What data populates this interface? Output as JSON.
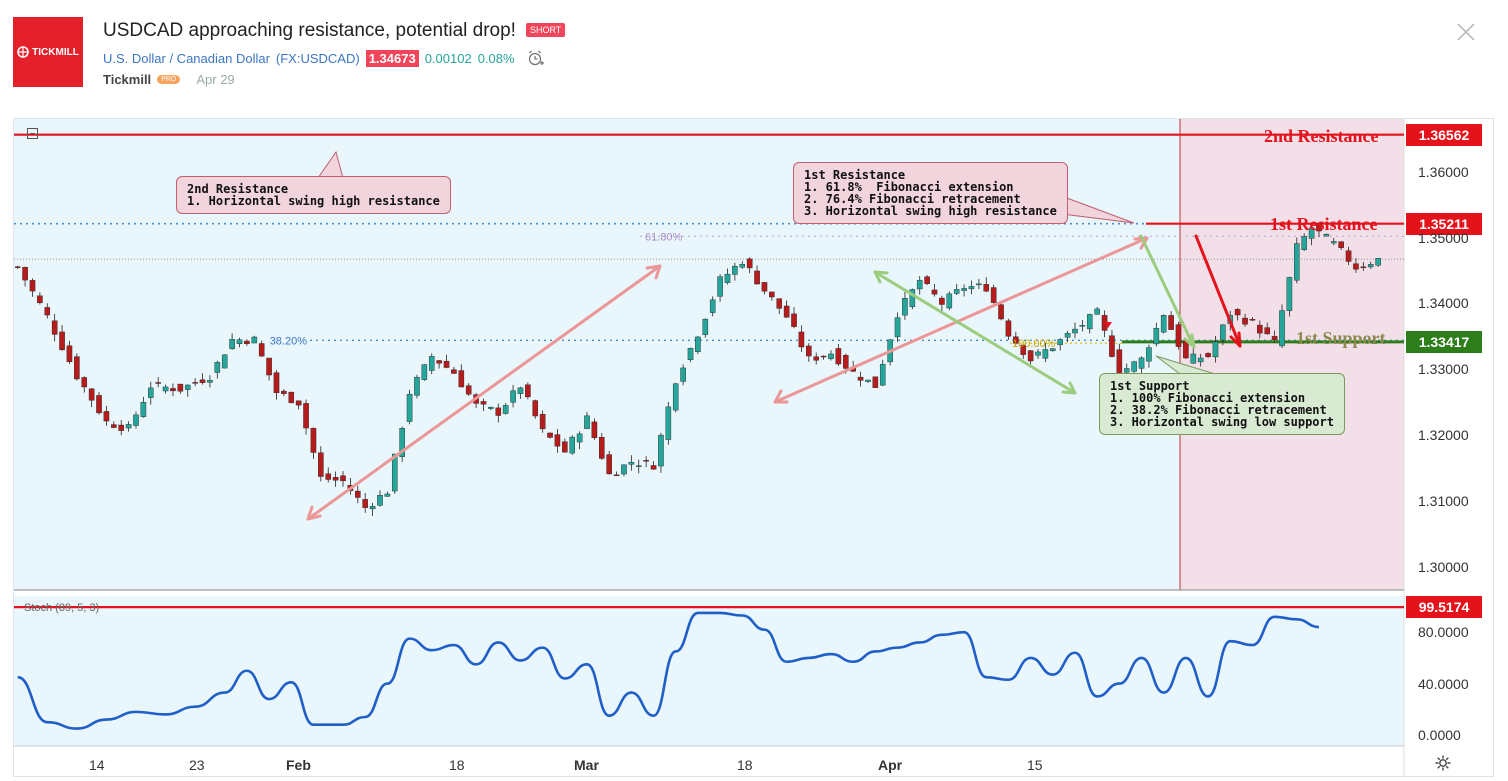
{
  "header": {
    "logo_text": "TICKMILL",
    "title": "USDCAD approaching resistance, potential drop!",
    "badge": "SHORT",
    "instrument": "U.S. Dollar / Canadian Dollar",
    "symbol": "(FX:USDCAD)",
    "price": "1.34673",
    "change": "0.00102",
    "change_pct": "0.08%",
    "author": "Tickmill",
    "author_badge": "PRO",
    "date": "Apr 29"
  },
  "price_tags": {
    "r2": "1.36562",
    "r1": "1.35211",
    "s1": "1.33417",
    "stoch": "99.5174"
  },
  "labels": {
    "r2": "2nd Resistance",
    "r1": "1st Resistance",
    "s1": "1st Support",
    "fib_618": "61.80%",
    "fib_382": "38.20%",
    "fib_100": "100.00%",
    "stoch_title": "Stoch (89, 5, 3)"
  },
  "notes": {
    "r2": "2nd Resistance\n1. Horizontal swing high resistance",
    "r1": "1st Resistance\n1. 61.8%  Fibonacci extension\n2. 76.4% Fibonacci retracement\n3. Horizontal swing high resistance",
    "s1": "1st Support\n1. 100% Fibonacci extension\n2. 38.2% Fibonacci retracement\n3. Horizontal swing low support"
  },
  "colors": {
    "bg": "#e9f6fc",
    "zone": "#f2dde7",
    "resistance": "#e4121b",
    "support": "#2e7d1b",
    "up": "#26a69a",
    "down": "#b71c1c",
    "pink_arrow": "#ec9797",
    "green_arrow": "#9ccc7e",
    "stoch_line": "#1f5fc7"
  },
  "chart_data": {
    "type": "candlestick",
    "symbol": "FX:USDCAD",
    "y_ticks": [
      "1.36000",
      "1.35000",
      "1.34000",
      "1.33000",
      "1.32000",
      "1.31000",
      "1.30000"
    ],
    "stoch_ticks": [
      "80.0000",
      "40.0000",
      "0.0000"
    ],
    "x_ticks": [
      "14",
      "23",
      "Feb",
      "18",
      "Mar",
      "18",
      "Apr",
      "15"
    ],
    "ylim": [
      1.2965,
      1.368
    ],
    "levels": {
      "resistance_2": 1.36562,
      "resistance_1": 1.35211,
      "support_1": 1.33417,
      "fib_618": 1.3502,
      "fib_382": 1.3344,
      "current": 1.34673,
      "stoch_resistance": 99.5174
    },
    "price_path": [
      [
        0,
        1.3455
      ],
      [
        4,
        1.338
      ],
      [
        8,
        1.329
      ],
      [
        12,
        1.322
      ],
      [
        15,
        1.321
      ],
      [
        18,
        1.3275
      ],
      [
        22,
        1.327
      ],
      [
        26,
        1.329
      ],
      [
        29,
        1.3345
      ],
      [
        32,
        1.3345
      ],
      [
        35,
        1.3265
      ],
      [
        38,
        1.325
      ],
      [
        41,
        1.3135
      ],
      [
        44,
        1.313
      ],
      [
        47,
        1.309
      ],
      [
        50,
        1.3115
      ],
      [
        53,
        1.3265
      ],
      [
        56,
        1.332
      ],
      [
        59,
        1.3295
      ],
      [
        62,
        1.3245
      ],
      [
        65,
        1.3235
      ],
      [
        68,
        1.3275
      ],
      [
        71,
        1.3205
      ],
      [
        74,
        1.3175
      ],
      [
        77,
        1.3225
      ],
      [
        80,
        1.314
      ],
      [
        83,
        1.316
      ],
      [
        86,
        1.3155
      ],
      [
        89,
        1.3285
      ],
      [
        92,
        1.3355
      ],
      [
        95,
        1.3435
      ],
      [
        98,
        1.3465
      ],
      [
        101,
        1.342
      ],
      [
        104,
        1.338
      ],
      [
        107,
        1.3315
      ],
      [
        110,
        1.3325
      ],
      [
        113,
        1.3295
      ],
      [
        116,
        1.3275
      ],
      [
        119,
        1.3385
      ],
      [
        122,
        1.3435
      ],
      [
        125,
        1.34
      ],
      [
        128,
        1.3425
      ],
      [
        131,
        1.3425
      ],
      [
        134,
        1.3355
      ],
      [
        137,
        1.3315
      ],
      [
        140,
        1.3335
      ],
      [
        143,
        1.336
      ],
      [
        146,
        1.3385
      ],
      [
        149,
        1.3295
      ],
      [
        152,
        1.3315
      ],
      [
        155,
        1.3385
      ],
      [
        158,
        1.3315
      ],
      [
        161,
        1.332
      ],
      [
        164,
        1.3385
      ],
      [
        167,
        1.337
      ],
      [
        170,
        1.334
      ],
      [
        173,
        1.3485
      ],
      [
        175,
        1.3515
      ],
      [
        178,
        1.349
      ],
      [
        181,
        1.3455
      ],
      [
        184,
        1.3467
      ]
    ],
    "stochastic": [
      [
        0,
        45
      ],
      [
        4,
        10
      ],
      [
        8,
        5
      ],
      [
        12,
        12
      ],
      [
        16,
        18
      ],
      [
        20,
        16
      ],
      [
        24,
        22
      ],
      [
        28,
        33
      ],
      [
        31,
        50
      ],
      [
        34,
        28
      ],
      [
        37,
        41
      ],
      [
        40,
        8
      ],
      [
        44,
        8
      ],
      [
        47,
        14
      ],
      [
        50,
        40
      ],
      [
        53,
        75
      ],
      [
        56,
        66
      ],
      [
        59,
        70
      ],
      [
        62,
        55
      ],
      [
        65,
        72
      ],
      [
        68,
        58
      ],
      [
        71,
        68
      ],
      [
        74,
        44
      ],
      [
        77,
        55
      ],
      [
        80,
        15
      ],
      [
        83,
        33
      ],
      [
        86,
        15
      ],
      [
        89,
        65
      ],
      [
        92,
        95
      ],
      [
        95,
        95
      ],
      [
        98,
        93
      ],
      [
        101,
        82
      ],
      [
        104,
        57
      ],
      [
        107,
        60
      ],
      [
        110,
        63
      ],
      [
        113,
        57
      ],
      [
        116,
        65
      ],
      [
        119,
        68
      ],
      [
        122,
        72
      ],
      [
        125,
        78
      ],
      [
        128,
        80
      ],
      [
        131,
        45
      ],
      [
        134,
        43
      ],
      [
        137,
        60
      ],
      [
        140,
        47
      ],
      [
        143,
        64
      ],
      [
        146,
        30
      ],
      [
        149,
        40
      ],
      [
        152,
        60
      ],
      [
        155,
        33
      ],
      [
        158,
        60
      ],
      [
        161,
        30
      ],
      [
        164,
        73
      ],
      [
        167,
        70
      ],
      [
        170,
        92
      ],
      [
        173,
        90
      ],
      [
        176,
        84
      ]
    ]
  }
}
